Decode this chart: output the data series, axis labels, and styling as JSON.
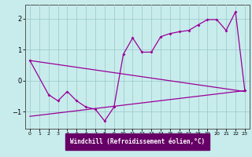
{
  "xlabel": "Windchill (Refroidissement éolien,°C)",
  "bg_color": "#c8ecec",
  "grid_color": "#a0cccc",
  "line_color": "#990099",
  "label_bg": "#660066",
  "xlim": [
    -0.5,
    23.5
  ],
  "ylim": [
    -1.55,
    2.45
  ],
  "x_ticks": [
    0,
    1,
    2,
    3,
    4,
    5,
    6,
    7,
    8,
    9,
    10,
    11,
    12,
    13,
    14,
    15,
    16,
    17,
    18,
    19,
    20,
    21,
    22,
    23
  ],
  "y_ticks": [
    -1,
    0,
    1,
    2
  ],
  "line1_x": [
    0,
    23
  ],
  "line1_y": [
    0.65,
    -0.35
  ],
  "line2_x": [
    0,
    2,
    3,
    4,
    5,
    6,
    7,
    8,
    9,
    10,
    11,
    12,
    13,
    14,
    15,
    16,
    17,
    18,
    19,
    20,
    21,
    22,
    23
  ],
  "line2_y": [
    0.65,
    -0.45,
    -0.65,
    -0.35,
    -0.65,
    -0.85,
    -0.92,
    -1.3,
    -0.85,
    0.85,
    1.38,
    0.92,
    0.92,
    1.42,
    1.52,
    1.58,
    1.62,
    1.8,
    1.97,
    1.97,
    1.62,
    2.22,
    -0.32
  ],
  "line3_x": [
    0,
    23
  ],
  "line3_y": [
    -1.15,
    -0.32
  ]
}
